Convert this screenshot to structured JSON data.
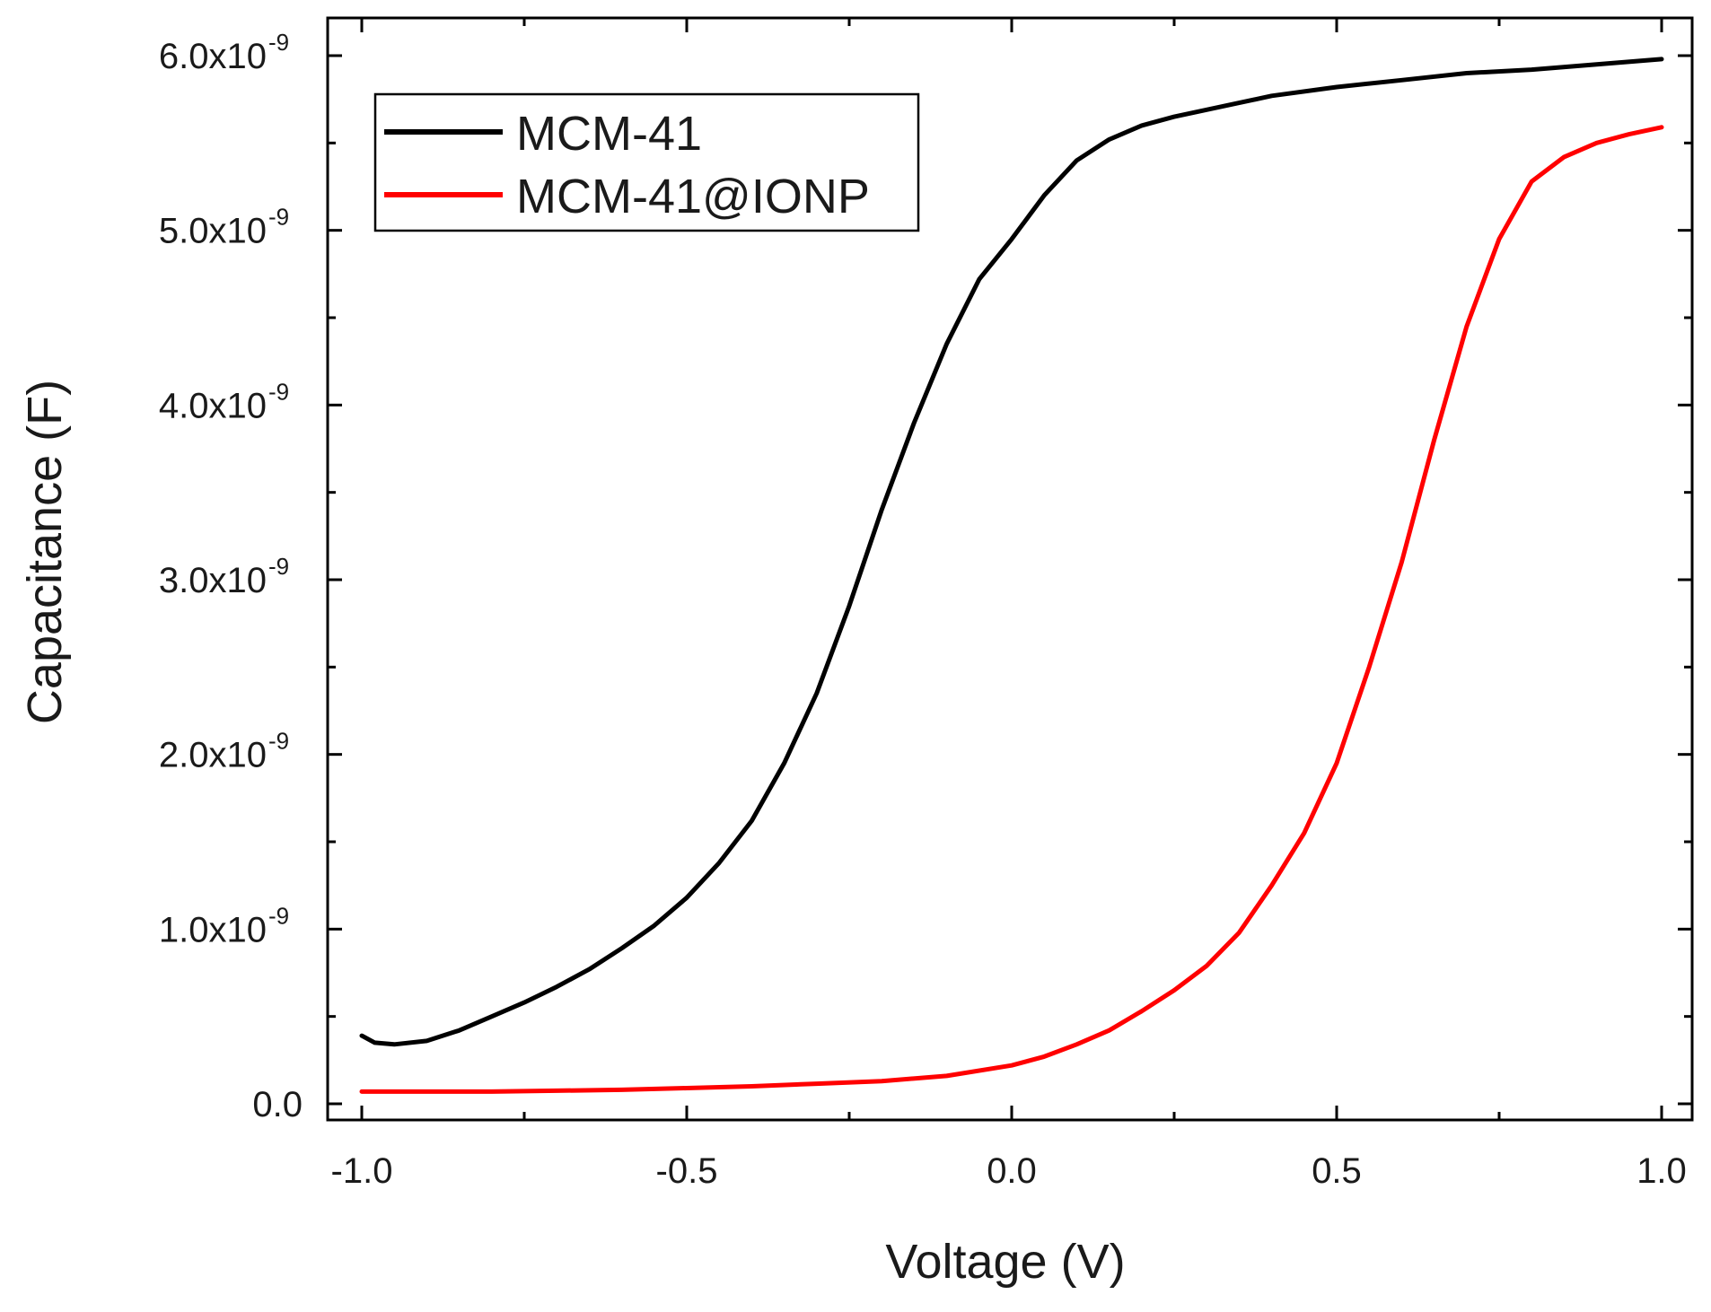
{
  "chart_data": {
    "type": "line",
    "xlabel": "Voltage (V)",
    "ylabel": "Capacitance (F)",
    "xlim": [
      -1.0,
      1.0
    ],
    "ylim": [
      0,
      6e-09
    ],
    "x_ticks": [
      {
        "value": -1.0,
        "label": "-1.0"
      },
      {
        "value": -0.5,
        "label": "-0.5"
      },
      {
        "value": 0.0,
        "label": "0.0"
      },
      {
        "value": 0.5,
        "label": "0.5"
      },
      {
        "value": 1.0,
        "label": "1.0"
      }
    ],
    "y_ticks": [
      {
        "value": 0,
        "label": "0.0",
        "exp": ""
      },
      {
        "value": 1e-09,
        "label": "1.0x10",
        "exp": "-9"
      },
      {
        "value": 2e-09,
        "label": "2.0x10",
        "exp": "-9"
      },
      {
        "value": 3e-09,
        "label": "3.0x10",
        "exp": "-9"
      },
      {
        "value": 4e-09,
        "label": "4.0x10",
        "exp": "-9"
      },
      {
        "value": 5e-09,
        "label": "5.0x10",
        "exp": "-9"
      },
      {
        "value": 6e-09,
        "label": "6.0x10",
        "exp": "-9"
      }
    ],
    "legend_position": "top-left",
    "grid": false,
    "series": [
      {
        "name": "MCM-41",
        "color": "#000000",
        "x": [
          -1.0,
          -0.98,
          -0.95,
          -0.9,
          -0.85,
          -0.8,
          -0.75,
          -0.7,
          -0.65,
          -0.6,
          -0.55,
          -0.5,
          -0.45,
          -0.4,
          -0.35,
          -0.3,
          -0.25,
          -0.2,
          -0.15,
          -0.1,
          -0.05,
          0.0,
          0.05,
          0.1,
          0.15,
          0.2,
          0.25,
          0.3,
          0.35,
          0.4,
          0.5,
          0.6,
          0.7,
          0.8,
          0.9,
          1.0
        ],
        "y": [
          3.9e-10,
          3.5e-10,
          3.4e-10,
          3.6e-10,
          4.2e-10,
          5e-10,
          5.8e-10,
          6.7e-10,
          7.7e-10,
          8.9e-10,
          1.02e-09,
          1.18e-09,
          1.38e-09,
          1.62e-09,
          1.95e-09,
          2.35e-09,
          2.85e-09,
          3.4e-09,
          3.9e-09,
          4.35e-09,
          4.72e-09,
          4.95e-09,
          5.2e-09,
          5.4e-09,
          5.52e-09,
          5.6e-09,
          5.65e-09,
          5.69e-09,
          5.73e-09,
          5.77e-09,
          5.82e-09,
          5.86e-09,
          5.9e-09,
          5.92e-09,
          5.95e-09,
          5.98e-09
        ]
      },
      {
        "name": "MCM-41@IONP",
        "color": "#ff0000",
        "x": [
          -1.0,
          -0.9,
          -0.8,
          -0.7,
          -0.6,
          -0.5,
          -0.4,
          -0.3,
          -0.2,
          -0.1,
          0.0,
          0.05,
          0.1,
          0.15,
          0.2,
          0.25,
          0.3,
          0.35,
          0.4,
          0.45,
          0.5,
          0.55,
          0.6,
          0.65,
          0.7,
          0.75,
          0.8,
          0.85,
          0.9,
          0.95,
          1.0
        ],
        "y": [
          7e-11,
          7e-11,
          7e-11,
          7.5e-11,
          8e-11,
          9e-11,
          1e-10,
          1.15e-10,
          1.3e-10,
          1.6e-10,
          2.2e-10,
          2.7e-10,
          3.4e-10,
          4.2e-10,
          5.3e-10,
          6.5e-10,
          7.9e-10,
          9.8e-10,
          1.25e-09,
          1.55e-09,
          1.95e-09,
          2.5e-09,
          3.1e-09,
          3.8e-09,
          4.45e-09,
          4.95e-09,
          5.28e-09,
          5.42e-09,
          5.5e-09,
          5.55e-09,
          5.59e-09
        ]
      }
    ]
  }
}
